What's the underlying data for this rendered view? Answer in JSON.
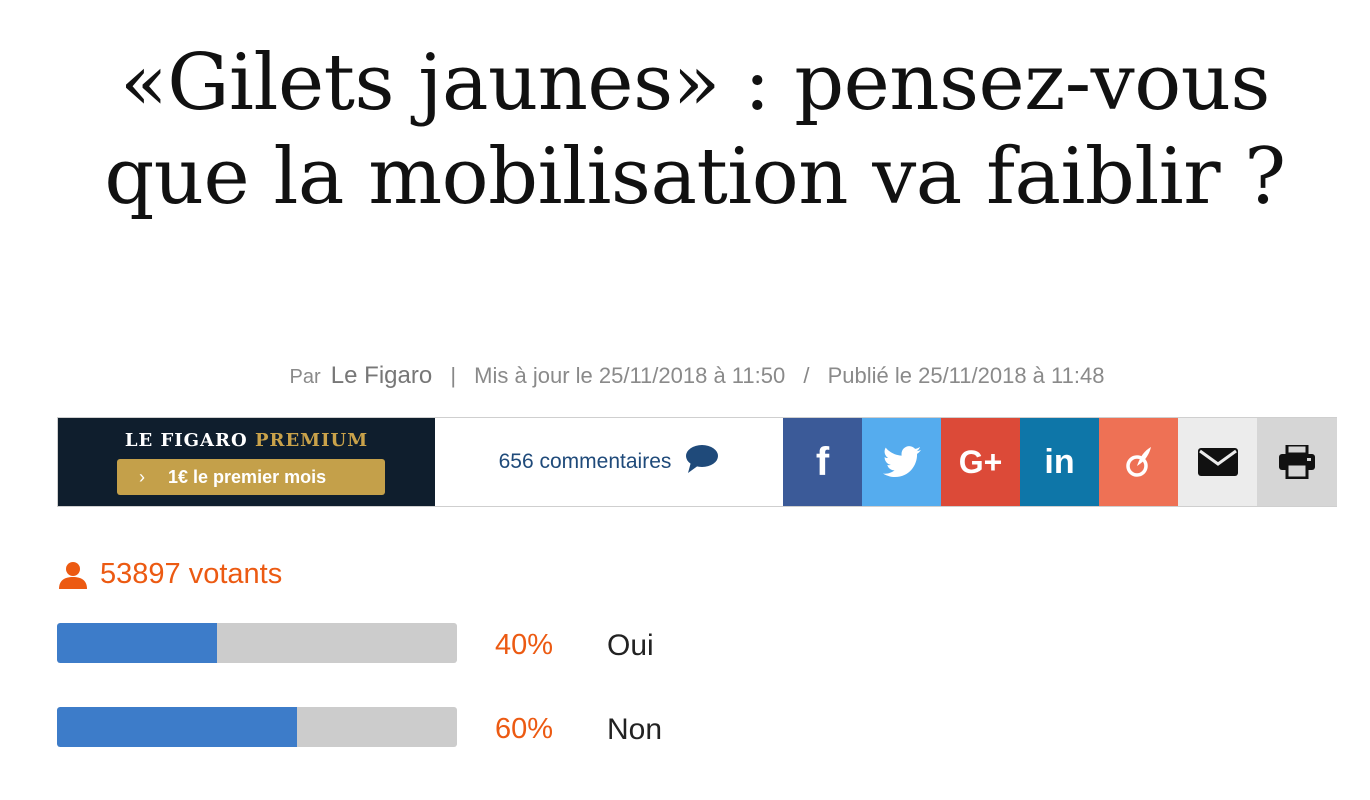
{
  "article": {
    "title": "«Gilets jaunes» : pensez-vous que la mobilisation va faiblir ?",
    "byline": {
      "par": "Par",
      "author": "Le Figaro",
      "separator": "|",
      "updated": "Mis à jour le 25/11/2018 à 11:50",
      "slash": "/",
      "published": "Publié le 25/11/2018 à 11:48"
    }
  },
  "toolbar": {
    "premium": {
      "brand_main": "LE FIGARO",
      "brand_accent": "PREMIUM",
      "offer_chevron": "›",
      "offer": "1€ le premier mois",
      "accent_color": "#c4a04a"
    },
    "comments": {
      "label": "656 commentaires",
      "icon": "speech-bubble-icon"
    },
    "share": [
      {
        "name": "facebook",
        "icon": "facebook-icon",
        "color": "#3b5a98"
      },
      {
        "name": "twitter",
        "icon": "twitter-icon",
        "color": "#55acee"
      },
      {
        "name": "google-plus",
        "icon": "google-plus-icon",
        "color": "#dc4a38"
      },
      {
        "name": "linkedin",
        "icon": "linkedin-icon",
        "color": "#0e76a8"
      },
      {
        "name": "viadeo",
        "icon": "viadeo-icon",
        "color": "#ee7155"
      },
      {
        "name": "email",
        "icon": "envelope-icon",
        "color": "#ececec"
      },
      {
        "name": "print",
        "icon": "printer-icon",
        "color": "#d6d6d6"
      }
    ],
    "google_plus_text": "G+",
    "linkedin_text": "in",
    "facebook_text": "f"
  },
  "poll": {
    "voters": "53897 votants",
    "voters_icon": "user-icon",
    "accent_color": "#ec5a12",
    "bar_color": "#3d7cc9",
    "options": [
      {
        "percent_label": "40%",
        "fraction": 0.4,
        "answer": "Oui"
      },
      {
        "percent_label": "60%",
        "fraction": 0.6,
        "answer": "Non"
      }
    ]
  }
}
